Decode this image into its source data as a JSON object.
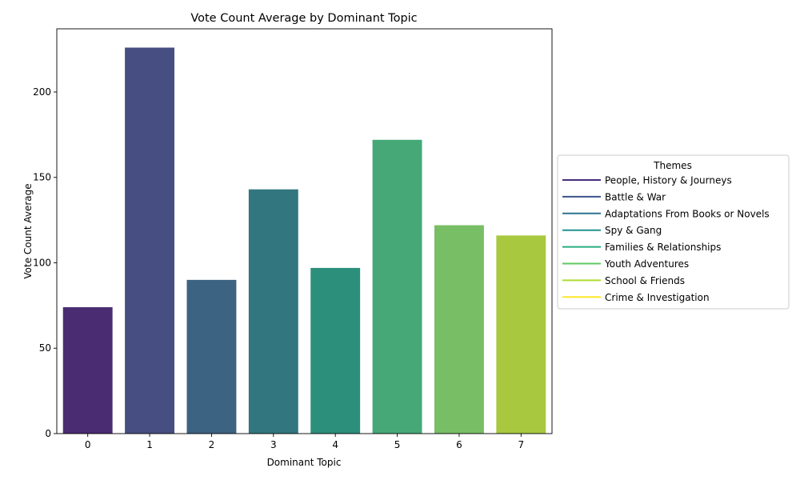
{
  "chart_data": {
    "type": "bar",
    "title": "Vote Count Average by Dominant Topic",
    "xlabel": "Dominant Topic",
    "ylabel": "Vote Count Average",
    "categories": [
      "0",
      "1",
      "2",
      "3",
      "4",
      "5",
      "6",
      "7"
    ],
    "values": [
      74,
      226,
      90,
      143,
      97,
      172,
      122,
      116
    ],
    "colors": [
      "#4a2c72",
      "#474f82",
      "#3c6382",
      "#32777f",
      "#2b8f7c",
      "#46a877",
      "#78be65",
      "#a8c840"
    ],
    "ylim": [
      0,
      237
    ],
    "yticks": [
      0,
      50,
      100,
      150,
      200
    ],
    "grid": false,
    "legend": {
      "title": "Themes",
      "placement": "center-right-outside",
      "entries": [
        "People, History & Journeys",
        "Battle & War",
        "Adaptations From Books or Novels",
        "Spy & Gang",
        "Families & Relationships",
        "Youth Adventures",
        "School & Friends",
        "Crime & Investigation"
      ],
      "colors": [
        "#472d7b",
        "#3b528b",
        "#2c728e",
        "#21918c",
        "#28ae80",
        "#5ec962",
        "#addc30",
        "#fde725"
      ]
    }
  }
}
